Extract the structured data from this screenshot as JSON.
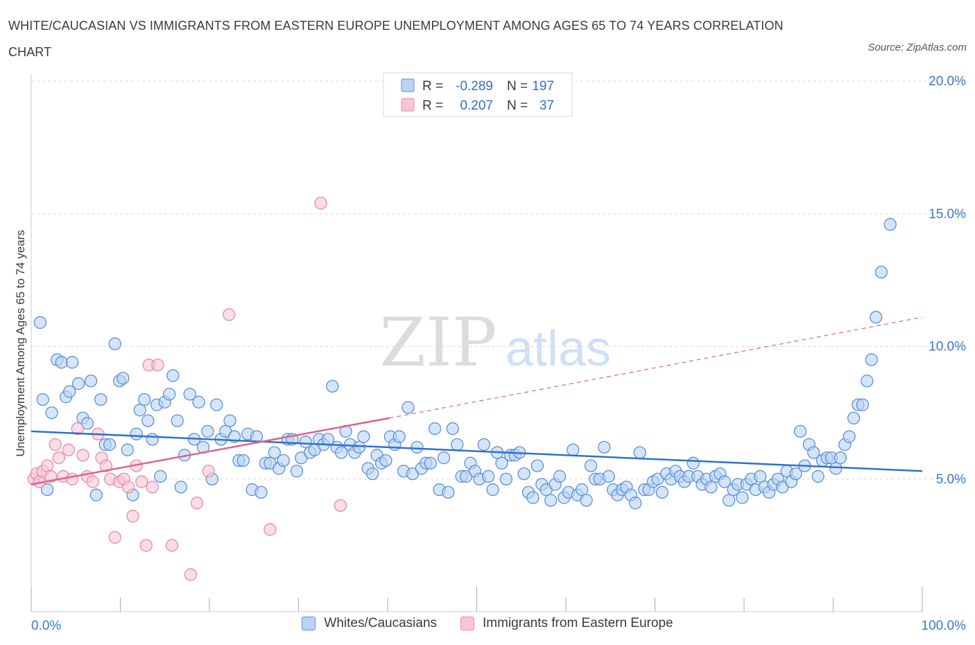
{
  "header": {
    "title": "WHITE/CAUCASIAN VS IMMIGRANTS FROM EASTERN EUROPE UNEMPLOYMENT AMONG AGES 65 TO 74 YEARS CORRELATION CHART",
    "source": "Source: ZipAtlas.com"
  },
  "watermark": {
    "zip": "ZIP",
    "atlas": "atlas"
  },
  "colors": {
    "blue": "#5b8fd9",
    "blue_fill": "#b9d3f3",
    "blue_line": "#2f6fd0",
    "pink": "#e88aa6",
    "pink_fill": "#f7c7d6",
    "pink_line": "#e0608a",
    "tick_text": "#3a78d0",
    "grid": "#d9d9d9"
  },
  "chart_data": {
    "type": "scatter",
    "title": "WHITE/CAUCASIAN VS IMMIGRANTS FROM EASTERN EUROPE UNEMPLOYMENT AMONG AGES 65 TO 74 YEARS CORRELATION CHART",
    "xlabel": "",
    "ylabel": "Unemployment Among Ages 65 to 74 years",
    "xlim": [
      0,
      100
    ],
    "ylim": [
      0,
      20
    ],
    "x_tick_labels": [
      "0.0%",
      "100.0%"
    ],
    "y_ticks": [
      5,
      10,
      15,
      20
    ],
    "y_tick_labels": [
      "5.0%",
      "10.0%",
      "15.0%",
      "20.0%"
    ],
    "grid": true,
    "legend_stats": [
      {
        "r_label": "R =",
        "r_value": "-0.289",
        "n_label": "N =",
        "n_value": "197"
      },
      {
        "r_label": "R =",
        "r_value": "0.207",
        "n_label": "N =",
        "n_value": "37"
      }
    ],
    "series": [
      {
        "name": "Whites/Caucasians",
        "trend": {
          "x": [
            0,
            100
          ],
          "y": [
            6.8,
            5.3
          ]
        },
        "points": [
          [
            1.0,
            10.9
          ],
          [
            1.3,
            8.0
          ],
          [
            1.8,
            4.6
          ],
          [
            2.3,
            7.5
          ],
          [
            2.9,
            9.5
          ],
          [
            3.4,
            9.4
          ],
          [
            3.9,
            8.1
          ],
          [
            4.3,
            8.3
          ],
          [
            4.6,
            9.4
          ],
          [
            5.3,
            8.6
          ],
          [
            5.8,
            7.3
          ],
          [
            6.3,
            7.1
          ],
          [
            6.7,
            8.7
          ],
          [
            7.3,
            4.4
          ],
          [
            7.8,
            8.0
          ],
          [
            8.3,
            6.3
          ],
          [
            8.8,
            6.3
          ],
          [
            9.4,
            10.1
          ],
          [
            9.9,
            8.7
          ],
          [
            10.3,
            8.8
          ],
          [
            10.8,
            6.1
          ],
          [
            11.4,
            4.4
          ],
          [
            11.8,
            6.7
          ],
          [
            12.2,
            7.6
          ],
          [
            12.7,
            8.0
          ],
          [
            13.1,
            7.2
          ],
          [
            13.6,
            6.5
          ],
          [
            14.1,
            7.8
          ],
          [
            14.5,
            5.1
          ],
          [
            15.0,
            7.9
          ],
          [
            15.5,
            8.2
          ],
          [
            15.9,
            8.9
          ],
          [
            16.4,
            7.2
          ],
          [
            16.8,
            4.7
          ],
          [
            17.2,
            5.9
          ],
          [
            17.8,
            8.2
          ],
          [
            18.3,
            6.5
          ],
          [
            18.8,
            7.9
          ],
          [
            19.3,
            6.2
          ],
          [
            19.8,
            6.8
          ],
          [
            20.3,
            5.0
          ],
          [
            20.8,
            7.8
          ],
          [
            21.3,
            6.5
          ],
          [
            21.8,
            6.8
          ],
          [
            22.3,
            7.2
          ],
          [
            22.8,
            6.6
          ],
          [
            23.3,
            5.7
          ],
          [
            23.8,
            5.7
          ],
          [
            24.3,
            6.7
          ],
          [
            24.8,
            4.6
          ],
          [
            25.3,
            6.6
          ],
          [
            25.8,
            4.5
          ],
          [
            26.3,
            5.6
          ],
          [
            26.8,
            5.6
          ],
          [
            27.3,
            6.0
          ],
          [
            27.8,
            5.4
          ],
          [
            28.3,
            5.7
          ],
          [
            28.8,
            6.5
          ],
          [
            29.3,
            6.5
          ],
          [
            29.8,
            5.3
          ],
          [
            30.3,
            5.8
          ],
          [
            30.8,
            6.4
          ],
          [
            31.3,
            6.0
          ],
          [
            31.8,
            6.1
          ],
          [
            32.3,
            6.5
          ],
          [
            32.8,
            6.3
          ],
          [
            33.3,
            6.5
          ],
          [
            33.8,
            8.5
          ],
          [
            34.3,
            6.2
          ],
          [
            34.8,
            6.0
          ],
          [
            35.3,
            6.8
          ],
          [
            35.8,
            6.3
          ],
          [
            36.3,
            6.0
          ],
          [
            36.8,
            6.2
          ],
          [
            37.3,
            6.6
          ],
          [
            37.8,
            5.4
          ],
          [
            38.3,
            5.2
          ],
          [
            38.8,
            5.9
          ],
          [
            39.3,
            5.6
          ],
          [
            39.8,
            5.7
          ],
          [
            40.3,
            6.6
          ],
          [
            40.8,
            6.3
          ],
          [
            41.3,
            6.6
          ],
          [
            41.8,
            5.3
          ],
          [
            42.3,
            7.7
          ],
          [
            42.8,
            5.2
          ],
          [
            43.3,
            6.2
          ],
          [
            43.8,
            5.4
          ],
          [
            44.3,
            5.6
          ],
          [
            44.8,
            5.6
          ],
          [
            45.3,
            6.9
          ],
          [
            45.8,
            4.6
          ],
          [
            46.3,
            5.8
          ],
          [
            46.8,
            4.5
          ],
          [
            47.3,
            6.9
          ],
          [
            47.8,
            6.3
          ],
          [
            48.3,
            5.1
          ],
          [
            48.8,
            5.1
          ],
          [
            49.3,
            5.6
          ],
          [
            49.8,
            5.3
          ],
          [
            50.3,
            5.0
          ],
          [
            50.8,
            6.3
          ],
          [
            51.3,
            5.1
          ],
          [
            51.8,
            4.6
          ],
          [
            52.3,
            6.0
          ],
          [
            52.8,
            5.6
          ],
          [
            53.3,
            5.0
          ],
          [
            53.8,
            5.9
          ],
          [
            54.3,
            5.9
          ],
          [
            54.8,
            6.0
          ],
          [
            55.3,
            5.2
          ],
          [
            55.8,
            4.5
          ],
          [
            56.3,
            4.3
          ],
          [
            56.8,
            5.5
          ],
          [
            57.3,
            4.8
          ],
          [
            57.8,
            4.6
          ],
          [
            58.3,
            4.2
          ],
          [
            58.8,
            4.8
          ],
          [
            59.3,
            5.1
          ],
          [
            59.8,
            4.3
          ],
          [
            60.3,
            4.5
          ],
          [
            60.8,
            6.1
          ],
          [
            61.3,
            4.4
          ],
          [
            61.8,
            4.6
          ],
          [
            62.3,
            4.2
          ],
          [
            62.8,
            5.5
          ],
          [
            63.3,
            5.0
          ],
          [
            63.8,
            5.0
          ],
          [
            64.3,
            6.2
          ],
          [
            64.8,
            5.1
          ],
          [
            65.3,
            4.6
          ],
          [
            65.8,
            4.4
          ],
          [
            66.3,
            4.6
          ],
          [
            66.8,
            4.7
          ],
          [
            67.3,
            4.4
          ],
          [
            67.8,
            4.1
          ],
          [
            68.3,
            6.0
          ],
          [
            68.8,
            4.6
          ],
          [
            69.3,
            4.6
          ],
          [
            69.8,
            4.9
          ],
          [
            70.3,
            5.0
          ],
          [
            70.8,
            4.5
          ],
          [
            71.3,
            5.2
          ],
          [
            71.8,
            5.0
          ],
          [
            72.3,
            5.3
          ],
          [
            72.8,
            5.1
          ],
          [
            73.3,
            4.9
          ],
          [
            73.8,
            5.1
          ],
          [
            74.3,
            5.6
          ],
          [
            74.8,
            5.1
          ],
          [
            75.3,
            4.8
          ],
          [
            75.8,
            5.0
          ],
          [
            76.3,
            4.7
          ],
          [
            76.8,
            5.1
          ],
          [
            77.3,
            5.2
          ],
          [
            77.8,
            4.9
          ],
          [
            78.3,
            4.2
          ],
          [
            78.8,
            4.6
          ],
          [
            79.3,
            4.8
          ],
          [
            79.8,
            4.3
          ],
          [
            80.3,
            4.8
          ],
          [
            80.8,
            5.0
          ],
          [
            81.3,
            4.6
          ],
          [
            81.8,
            5.1
          ],
          [
            82.3,
            4.7
          ],
          [
            82.8,
            4.5
          ],
          [
            83.3,
            4.8
          ],
          [
            83.8,
            5.0
          ],
          [
            84.3,
            4.7
          ],
          [
            84.8,
            5.3
          ],
          [
            85.3,
            4.9
          ],
          [
            85.8,
            5.2
          ],
          [
            86.3,
            6.8
          ],
          [
            86.8,
            5.5
          ],
          [
            87.3,
            6.3
          ],
          [
            87.8,
            6.0
          ],
          [
            88.3,
            5.1
          ],
          [
            88.8,
            5.7
          ],
          [
            89.3,
            5.8
          ],
          [
            89.8,
            5.8
          ],
          [
            90.3,
            5.4
          ],
          [
            90.8,
            5.8
          ],
          [
            91.3,
            6.3
          ],
          [
            91.8,
            6.6
          ],
          [
            92.3,
            7.3
          ],
          [
            92.8,
            7.8
          ],
          [
            93.3,
            7.8
          ],
          [
            93.8,
            8.7
          ],
          [
            94.3,
            9.5
          ],
          [
            94.8,
            11.1
          ],
          [
            95.4,
            12.8
          ],
          [
            96.4,
            14.6
          ]
        ]
      },
      {
        "name": "Immigrants from Eastern Europe",
        "trend": {
          "x": [
            0,
            40.2
          ],
          "y": [
            4.8,
            7.3
          ]
        },
        "trend_dashed": {
          "x": [
            40.2,
            100
          ],
          "y": [
            7.3,
            11.1
          ]
        },
        "points": [
          [
            0.3,
            5.0
          ],
          [
            0.6,
            5.2
          ],
          [
            0.9,
            4.9
          ],
          [
            1.3,
            5.3
          ],
          [
            1.8,
            5.5
          ],
          [
            2.2,
            5.1
          ],
          [
            2.7,
            6.3
          ],
          [
            3.1,
            5.8
          ],
          [
            3.6,
            5.1
          ],
          [
            4.2,
            6.1
          ],
          [
            4.6,
            5.0
          ],
          [
            5.2,
            6.9
          ],
          [
            5.8,
            5.9
          ],
          [
            6.3,
            5.1
          ],
          [
            6.9,
            4.9
          ],
          [
            7.5,
            6.7
          ],
          [
            7.9,
            5.8
          ],
          [
            8.4,
            5.5
          ],
          [
            8.9,
            5.0
          ],
          [
            9.4,
            2.8
          ],
          [
            9.9,
            4.9
          ],
          [
            10.4,
            5.0
          ],
          [
            10.9,
            4.7
          ],
          [
            11.4,
            3.6
          ],
          [
            11.8,
            5.5
          ],
          [
            12.4,
            4.9
          ],
          [
            12.9,
            2.5
          ],
          [
            13.2,
            9.3
          ],
          [
            13.6,
            4.7
          ],
          [
            14.2,
            9.3
          ],
          [
            15.8,
            2.5
          ],
          [
            17.9,
            1.4
          ],
          [
            18.6,
            4.1
          ],
          [
            19.9,
            5.3
          ],
          [
            22.2,
            11.2
          ],
          [
            26.8,
            3.1
          ],
          [
            32.5,
            15.4
          ],
          [
            34.7,
            4.0
          ]
        ]
      }
    ]
  },
  "legend": {
    "items": [
      {
        "label": "Whites/Caucasians"
      },
      {
        "label": "Immigrants from Eastern Europe"
      }
    ]
  }
}
